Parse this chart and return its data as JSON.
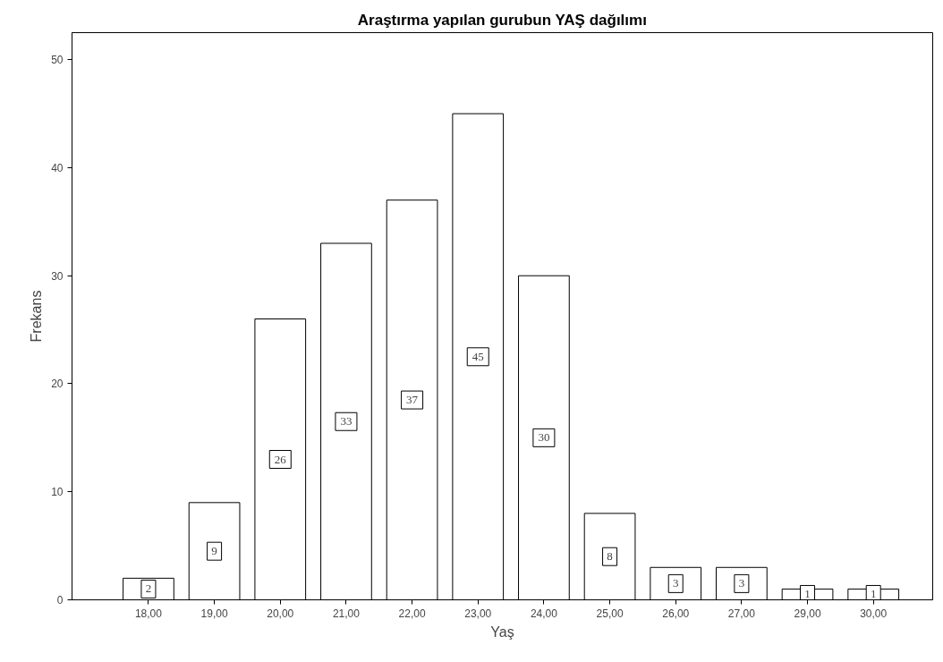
{
  "chart_data": {
    "type": "bar",
    "title": "Araştırma yapılan gurubun YAŞ dağılımı",
    "xlabel": "Yaş",
    "ylabel": "Frekans",
    "categories": [
      "18,00",
      "19,00",
      "20,00",
      "21,00",
      "22,00",
      "23,00",
      "24,00",
      "25,00",
      "26,00",
      "27,00",
      "29,00",
      "30,00"
    ],
    "values": [
      2,
      9,
      26,
      33,
      37,
      45,
      30,
      8,
      3,
      3,
      1,
      1
    ],
    "color": "#ffffff",
    "ylim": [
      0,
      52.5
    ],
    "yticks": [
      0,
      10,
      20,
      30,
      40,
      50
    ],
    "data_labels": true,
    "grid": false
  }
}
